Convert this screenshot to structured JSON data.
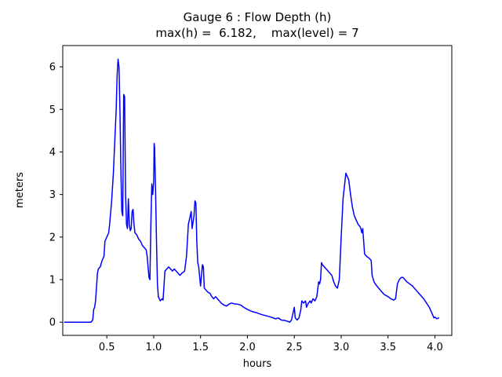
{
  "title": "Gauge 6 : Flow Depth (h)",
  "subtitle": "max(h) =  6.182,    max(level) = 7",
  "chart_data": {
    "type": "line",
    "title": "Gauge 6 : Flow Depth (h)",
    "subtitle": "max(h) =  6.182,    max(level) = 7",
    "xlabel": "hours",
    "ylabel": "meters",
    "xlim": [
      0.03,
      4.18
    ],
    "ylim": [
      -0.31,
      6.5
    ],
    "xticks": [
      0.5,
      1.0,
      1.5,
      2.0,
      2.5,
      3.0,
      3.5,
      4.0
    ],
    "xtick_labels": [
      "0.5",
      "1.0",
      "1.5",
      "2.0",
      "2.5",
      "3.0",
      "3.5",
      "4.0"
    ],
    "yticks": [
      0,
      1,
      2,
      3,
      4,
      5,
      6
    ],
    "ytick_labels": [
      "0",
      "1",
      "2",
      "3",
      "4",
      "5",
      "6"
    ],
    "grid": false,
    "legend": "none",
    "line_color": "#0000ff",
    "axis_color": "#000000",
    "background_color": "#ffffff",
    "max_h": 6.182,
    "max_level": 7,
    "series": [
      {
        "name": "flow-depth",
        "points": [
          [
            0.05,
            0.0
          ],
          [
            0.1,
            0.0
          ],
          [
            0.15,
            0.0
          ],
          [
            0.2,
            0.0
          ],
          [
            0.25,
            0.0
          ],
          [
            0.3,
            0.0
          ],
          [
            0.33,
            0.0
          ],
          [
            0.35,
            0.05
          ],
          [
            0.36,
            0.3
          ],
          [
            0.37,
            0.35
          ],
          [
            0.38,
            0.5
          ],
          [
            0.4,
            1.15
          ],
          [
            0.41,
            1.25
          ],
          [
            0.43,
            1.3
          ],
          [
            0.45,
            1.45
          ],
          [
            0.46,
            1.5
          ],
          [
            0.47,
            1.55
          ],
          [
            0.48,
            1.9
          ],
          [
            0.5,
            2.0
          ],
          [
            0.52,
            2.1
          ],
          [
            0.53,
            2.3
          ],
          [
            0.55,
            2.8
          ],
          [
            0.57,
            3.5
          ],
          [
            0.58,
            4.0
          ],
          [
            0.6,
            5.0
          ],
          [
            0.61,
            5.8
          ],
          [
            0.62,
            6.18
          ],
          [
            0.63,
            6.0
          ],
          [
            0.64,
            5.0
          ],
          [
            0.65,
            3.6
          ],
          [
            0.66,
            2.6
          ],
          [
            0.67,
            2.5
          ],
          [
            0.68,
            5.35
          ],
          [
            0.69,
            5.3
          ],
          [
            0.7,
            3.0
          ],
          [
            0.71,
            2.3
          ],
          [
            0.72,
            2.2
          ],
          [
            0.73,
            2.9
          ],
          [
            0.74,
            2.3
          ],
          [
            0.75,
            2.15
          ],
          [
            0.76,
            2.2
          ],
          [
            0.77,
            2.6
          ],
          [
            0.78,
            2.65
          ],
          [
            0.79,
            2.3
          ],
          [
            0.8,
            2.1
          ],
          [
            0.82,
            2.05
          ],
          [
            0.84,
            1.95
          ],
          [
            0.86,
            1.9
          ],
          [
            0.88,
            1.8
          ],
          [
            0.9,
            1.75
          ],
          [
            0.92,
            1.7
          ],
          [
            0.93,
            1.55
          ],
          [
            0.94,
            1.3
          ],
          [
            0.95,
            1.05
          ],
          [
            0.96,
            1.0
          ],
          [
            0.97,
            2.3
          ],
          [
            0.98,
            3.25
          ],
          [
            0.99,
            3.0
          ],
          [
            1.0,
            3.3
          ],
          [
            1.005,
            4.2
          ],
          [
            1.01,
            4.1
          ],
          [
            1.02,
            3.1
          ],
          [
            1.03,
            1.9
          ],
          [
            1.04,
            0.9
          ],
          [
            1.05,
            0.6
          ],
          [
            1.07,
            0.5
          ],
          [
            1.09,
            0.55
          ],
          [
            1.1,
            0.52
          ],
          [
            1.12,
            1.2
          ],
          [
            1.14,
            1.25
          ],
          [
            1.16,
            1.3
          ],
          [
            1.18,
            1.25
          ],
          [
            1.2,
            1.2
          ],
          [
            1.22,
            1.25
          ],
          [
            1.24,
            1.2
          ],
          [
            1.26,
            1.15
          ],
          [
            1.28,
            1.1
          ],
          [
            1.3,
            1.15
          ],
          [
            1.33,
            1.2
          ],
          [
            1.35,
            1.55
          ],
          [
            1.37,
            2.3
          ],
          [
            1.38,
            2.4
          ],
          [
            1.4,
            2.6
          ],
          [
            1.41,
            2.2
          ],
          [
            1.42,
            2.35
          ],
          [
            1.43,
            2.5
          ],
          [
            1.44,
            2.85
          ],
          [
            1.45,
            2.8
          ],
          [
            1.46,
            1.9
          ],
          [
            1.47,
            1.4
          ],
          [
            1.48,
            1.3
          ],
          [
            1.5,
            0.85
          ],
          [
            1.52,
            1.35
          ],
          [
            1.53,
            1.3
          ],
          [
            1.54,
            0.8
          ],
          [
            1.56,
            0.75
          ],
          [
            1.58,
            0.7
          ],
          [
            1.6,
            0.68
          ],
          [
            1.62,
            0.6
          ],
          [
            1.64,
            0.55
          ],
          [
            1.66,
            0.6
          ],
          [
            1.68,
            0.55
          ],
          [
            1.7,
            0.5
          ],
          [
            1.72,
            0.45
          ],
          [
            1.75,
            0.4
          ],
          [
            1.78,
            0.38
          ],
          [
            1.8,
            0.42
          ],
          [
            1.83,
            0.45
          ],
          [
            1.86,
            0.43
          ],
          [
            1.9,
            0.42
          ],
          [
            1.93,
            0.4
          ],
          [
            1.96,
            0.35
          ],
          [
            2.0,
            0.3
          ],
          [
            2.05,
            0.25
          ],
          [
            2.1,
            0.22
          ],
          [
            2.15,
            0.18
          ],
          [
            2.2,
            0.15
          ],
          [
            2.25,
            0.12
          ],
          [
            2.3,
            0.08
          ],
          [
            2.33,
            0.1
          ],
          [
            2.36,
            0.05
          ],
          [
            2.4,
            0.04
          ],
          [
            2.43,
            0.02
          ],
          [
            2.45,
            0.0
          ],
          [
            2.47,
            0.05
          ],
          [
            2.5,
            0.35
          ],
          [
            2.51,
            0.1
          ],
          [
            2.53,
            0.05
          ],
          [
            2.55,
            0.1
          ],
          [
            2.57,
            0.3
          ],
          [
            2.58,
            0.5
          ],
          [
            2.6,
            0.45
          ],
          [
            2.62,
            0.5
          ],
          [
            2.63,
            0.35
          ],
          [
            2.65,
            0.45
          ],
          [
            2.67,
            0.5
          ],
          [
            2.68,
            0.45
          ],
          [
            2.7,
            0.55
          ],
          [
            2.72,
            0.5
          ],
          [
            2.74,
            0.6
          ],
          [
            2.76,
            0.95
          ],
          [
            2.77,
            0.9
          ],
          [
            2.78,
            1.0
          ],
          [
            2.79,
            1.4
          ],
          [
            2.8,
            1.35
          ],
          [
            2.82,
            1.3
          ],
          [
            2.84,
            1.25
          ],
          [
            2.86,
            1.2
          ],
          [
            2.88,
            1.15
          ],
          [
            2.9,
            1.1
          ],
          [
            2.92,
            0.95
          ],
          [
            2.94,
            0.85
          ],
          [
            2.96,
            0.8
          ],
          [
            2.98,
            1.0
          ],
          [
            3.0,
            2.0
          ],
          [
            3.02,
            2.9
          ],
          [
            3.04,
            3.3
          ],
          [
            3.05,
            3.5
          ],
          [
            3.06,
            3.45
          ],
          [
            3.08,
            3.35
          ],
          [
            3.1,
            3.0
          ],
          [
            3.12,
            2.7
          ],
          [
            3.14,
            2.5
          ],
          [
            3.16,
            2.4
          ],
          [
            3.18,
            2.3
          ],
          [
            3.2,
            2.25
          ],
          [
            3.21,
            2.2
          ],
          [
            3.22,
            2.1
          ],
          [
            3.23,
            2.2
          ],
          [
            3.24,
            1.9
          ],
          [
            3.25,
            1.6
          ],
          [
            3.27,
            1.55
          ],
          [
            3.3,
            1.5
          ],
          [
            3.32,
            1.45
          ],
          [
            3.33,
            1.1
          ],
          [
            3.35,
            0.95
          ],
          [
            3.38,
            0.85
          ],
          [
            3.4,
            0.8
          ],
          [
            3.43,
            0.72
          ],
          [
            3.46,
            0.65
          ],
          [
            3.5,
            0.6
          ],
          [
            3.53,
            0.55
          ],
          [
            3.56,
            0.52
          ],
          [
            3.58,
            0.55
          ],
          [
            3.6,
            0.9
          ],
          [
            3.62,
            1.0
          ],
          [
            3.64,
            1.05
          ],
          [
            3.66,
            1.05
          ],
          [
            3.68,
            1.0
          ],
          [
            3.7,
            0.95
          ],
          [
            3.73,
            0.9
          ],
          [
            3.76,
            0.85
          ],
          [
            3.8,
            0.75
          ],
          [
            3.84,
            0.65
          ],
          [
            3.88,
            0.55
          ],
          [
            3.91,
            0.45
          ],
          [
            3.94,
            0.35
          ],
          [
            3.96,
            0.25
          ],
          [
            3.98,
            0.15
          ],
          [
            3.99,
            0.1
          ],
          [
            4.0,
            0.12
          ],
          [
            4.02,
            0.08
          ],
          [
            4.04,
            0.1
          ]
        ]
      }
    ]
  }
}
